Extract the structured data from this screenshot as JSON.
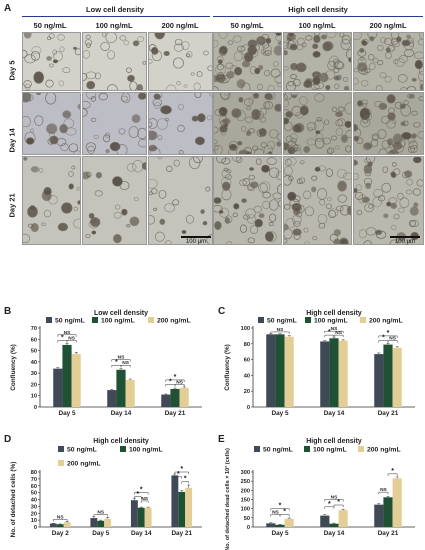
{
  "panel_a": {
    "letter": "A",
    "low_group": "Low cell density",
    "high_group": "High cell density",
    "conc_labels": [
      "50 ng/mL",
      "100 ng/mL",
      "200 ng/mL",
      "50 ng/mL",
      "100 ng/mL",
      "200 ng/mL"
    ],
    "row_labels": [
      "Day 5",
      "Day 14",
      "Day 21"
    ],
    "scale_low": "100 μm",
    "scale_high": "100 μm"
  },
  "colors": {
    "s50": "#404a57",
    "s100": "#1f5135",
    "s200": "#e3cf95",
    "group_line": "#2a3b8f"
  },
  "chart_data": [
    {
      "letter": "B",
      "type": "bar",
      "title": "Low cell density",
      "ylabel": "Confluency (%)",
      "ylim": [
        0,
        70
      ],
      "yticks": [
        0,
        10,
        20,
        30,
        40,
        50,
        60,
        70
      ],
      "categories": [
        "Day 5",
        "Day 14",
        "Day 21"
      ],
      "series": [
        {
          "name": "50 ng/mL",
          "values": [
            34,
            15,
            11
          ],
          "err": [
            1,
            0.5,
            0.5
          ]
        },
        {
          "name": "100 ng/mL",
          "values": [
            55,
            33,
            16
          ],
          "err": [
            1.5,
            1,
            0.8
          ]
        },
        {
          "name": "200 ng/mL",
          "values": [
            47,
            24,
            17
          ],
          "err": [
            1.5,
            0.8,
            0.8
          ]
        }
      ],
      "sig": [
        {
          "cat": 0,
          "from": 0,
          "to": 2,
          "y": 64,
          "label": "NS"
        },
        {
          "cat": 0,
          "from": 0,
          "to": 1,
          "y": 59,
          "label": "*"
        },
        {
          "cat": 0,
          "from": 1,
          "to": 2,
          "y": 59,
          "label": "NS"
        },
        {
          "cat": 1,
          "from": 0,
          "to": 2,
          "y": 42,
          "label": "NS"
        },
        {
          "cat": 1,
          "from": 0,
          "to": 1,
          "y": 37,
          "label": "*"
        },
        {
          "cat": 1,
          "from": 1,
          "to": 2,
          "y": 37,
          "label": "NS"
        },
        {
          "cat": 2,
          "from": 0,
          "to": 2,
          "y": 24,
          "label": "*"
        },
        {
          "cat": 2,
          "from": 0,
          "to": 1,
          "y": 20,
          "label": "*"
        },
        {
          "cat": 2,
          "from": 1,
          "to": 2,
          "y": 20,
          "label": "NS"
        }
      ]
    },
    {
      "letter": "C",
      "type": "bar",
      "title": "High cell density",
      "ylabel": "Confluency (%)",
      "ylim": [
        0,
        100
      ],
      "yticks": [
        0,
        20,
        40,
        60,
        80,
        100
      ],
      "categories": [
        "Day 5",
        "Day 14",
        "Day 21"
      ],
      "series": [
        {
          "name": "50 ng/mL",
          "values": [
            92,
            83,
            67
          ],
          "err": [
            0.8,
            1,
            1.5
          ]
        },
        {
          "name": "100 ng/mL",
          "values": [
            92,
            87,
            79
          ],
          "err": [
            0.8,
            1.5,
            1.5
          ]
        },
        {
          "name": "200 ng/mL",
          "values": [
            89,
            84,
            75
          ],
          "err": [
            1.2,
            1,
            1.2
          ]
        }
      ],
      "sig": [
        {
          "cat": 0,
          "from": 0,
          "to": 2,
          "y": 95,
          "label": "NS"
        },
        {
          "cat": 1,
          "from": 0,
          "to": 2,
          "y": 96,
          "label": "NS"
        },
        {
          "cat": 1,
          "from": 0,
          "to": 1,
          "y": 91,
          "label": "*"
        },
        {
          "cat": 1,
          "from": 1,
          "to": 2,
          "y": 91,
          "label": "NS"
        },
        {
          "cat": 2,
          "from": 0,
          "to": 2,
          "y": 90,
          "label": "*"
        },
        {
          "cat": 2,
          "from": 0,
          "to": 1,
          "y": 84,
          "label": "*"
        },
        {
          "cat": 2,
          "from": 1,
          "to": 2,
          "y": 84,
          "label": "NS"
        }
      ]
    },
    {
      "letter": "D",
      "type": "bar",
      "title": "High cell density",
      "ylabel": "No. of detached cells (%)",
      "ylim": [
        0,
        80
      ],
      "yticks": [
        0,
        10,
        20,
        30,
        40,
        50,
        60,
        70,
        80
      ],
      "categories": [
        "Day 2",
        "Day 5",
        "Day 14",
        "Day 21"
      ],
      "series": [
        {
          "name": "50 ng/mL",
          "values": [
            5,
            13,
            39,
            75
          ],
          "err": [
            0.5,
            2,
            3,
            2
          ]
        },
        {
          "name": "100 ng/mL",
          "values": [
            4,
            9,
            28,
            51
          ],
          "err": [
            0.5,
            1,
            1,
            2
          ]
        },
        {
          "name": "200 ng/mL",
          "values": [
            7,
            12,
            28,
            57
          ],
          "err": [
            1,
            2,
            1,
            4
          ]
        }
      ],
      "sig": [
        {
          "cat": 0,
          "from": 0,
          "to": 2,
          "y": 11,
          "label": "NS"
        },
        {
          "cat": 1,
          "from": 0,
          "to": 2,
          "y": 18,
          "label": "NS"
        },
        {
          "cat": 2,
          "from": 0,
          "to": 2,
          "y": 50,
          "label": "*"
        },
        {
          "cat": 2,
          "from": 0,
          "to": 1,
          "y": 44,
          "label": "*"
        },
        {
          "cat": 2,
          "from": 1,
          "to": 2,
          "y": 38,
          "label": "NS"
        },
        {
          "cat": 3,
          "from": 0,
          "to": 2,
          "y": 80,
          "label": "*"
        },
        {
          "cat": 3,
          "from": 0,
          "to": 1,
          "y": 73,
          "label": "*"
        },
        {
          "cat": 3,
          "from": 1,
          "to": 2,
          "y": 66,
          "label": "*"
        }
      ]
    },
    {
      "letter": "E",
      "type": "bar",
      "title": "High cell density",
      "ylabel": "No. of detached dead cells × 10³ (cells)",
      "ylim": [
        0,
        300
      ],
      "yticks": [
        0,
        50,
        100,
        150,
        200,
        250,
        300
      ],
      "categories": [
        "Day 5",
        "Day 14",
        "Day 21"
      ],
      "series": [
        {
          "name": "50 ng/mL",
          "values": [
            20,
            62,
            122
          ],
          "err": [
            3,
            5,
            5
          ]
        },
        {
          "name": "100 ng/mL",
          "values": [
            12,
            18,
            162
          ],
          "err": [
            3,
            3,
            5
          ]
        },
        {
          "name": "200 ng/mL",
          "values": [
            45,
            92,
            265
          ],
          "err": [
            4,
            5,
            8
          ]
        }
      ],
      "sig": [
        {
          "cat": 0,
          "from": 0,
          "to": 2,
          "y": 100,
          "label": "*"
        },
        {
          "cat": 0,
          "from": 0,
          "to": 1,
          "y": 68,
          "label": "NS"
        },
        {
          "cat": 0,
          "from": 1,
          "to": 2,
          "y": 68,
          "label": "*"
        },
        {
          "cat": 1,
          "from": 0,
          "to": 2,
          "y": 150,
          "label": "NS"
        },
        {
          "cat": 1,
          "from": 0,
          "to": 1,
          "y": 110,
          "label": "*"
        },
        {
          "cat": 1,
          "from": 1,
          "to": 2,
          "y": 120,
          "label": "*"
        },
        {
          "cat": 2,
          "from": 0,
          "to": 1,
          "y": 190,
          "label": "NS"
        },
        {
          "cat": 2,
          "from": 1,
          "to": 2,
          "y": 290,
          "label": "*"
        }
      ]
    }
  ]
}
